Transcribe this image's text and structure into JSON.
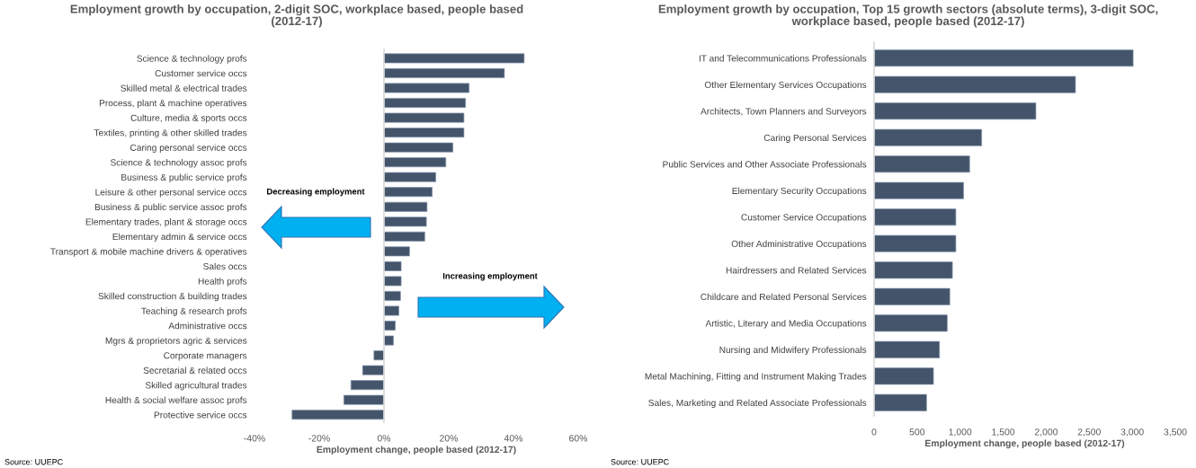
{
  "chart_data": [
    {
      "type": "bar",
      "orientation": "horizontal",
      "title": "Employment growth by occupation, 2-digit SOC, workplace based, people based (2012-17)",
      "xlabel": "Employment change, people based (2012-17)",
      "categories": [
        "Science & technology profs",
        "Customer service occs",
        "Skilled metal & electrical trades",
        "Process, plant & machine operatives",
        "Culture, media & sports occs",
        "Textiles, printing & other skilled trades",
        "Caring personal service occs",
        "Science & technology assoc profs",
        "Business & public service profs",
        "Leisure & other personal service occs",
        "Business & public service assoc profs",
        "Elementary trades, plant & storage occs",
        "Elementary admin & service occs",
        "Transport & mobile machine drivers & operatives",
        "Sales occs",
        "Health profs",
        "Skilled construction & building trades",
        "Teaching & research profs",
        "Administrative occs",
        "Mgrs & proprietors agric & services",
        "Corporate managers",
        "Secretarial & related occs",
        "Skilled agricultural trades",
        "Health & social welfare assoc profs",
        "Protective service occs"
      ],
      "values": [
        43.3,
        37.2,
        26.3,
        25.2,
        24.7,
        24.7,
        21.3,
        19.1,
        16.0,
        14.9,
        13.3,
        13.1,
        12.6,
        7.9,
        5.3,
        5.3,
        5.1,
        4.6,
        3.5,
        2.9,
        -3.1,
        -6.6,
        -10.2,
        -12.4,
        -28.4
      ],
      "color": "#44546a",
      "xlim": [
        -40,
        60
      ],
      "xticks": [
        {
          "value": -40,
          "label": "-40%"
        },
        {
          "value": -20,
          "label": "-20%"
        },
        {
          "value": 0,
          "label": "0%"
        },
        {
          "value": 20,
          "label": "20%"
        },
        {
          "value": 40,
          "label": "40%"
        },
        {
          "value": 60,
          "label": "60%"
        }
      ],
      "annotations": [
        "Decreasing employment",
        "Increasing employment",
        "Source: UUEPC"
      ]
    },
    {
      "type": "bar",
      "orientation": "horizontal",
      "title": "Employment growth by occupation, Top 15 growth sectors (absolute terms), 3-digit SOC, workplace based, people based (2012-17)",
      "xlabel": "Employment change, people based (2012-17)",
      "categories": [
        "IT and Telecommunications Professionals",
        "Other Elementary Services Occupations",
        "Architects, Town Planners and Surveyors",
        "Caring Personal Services",
        "Public Services and Other Associate Professionals",
        "Elementary Security Occupations",
        "Customer Service Occupations",
        "Other Administrative Occupations",
        "Hairdressers and Related Services",
        "Childcare and Related Personal Services",
        "Artistic, Literary and Media Occupations",
        "Nursing and Midwifery Professionals",
        "Metal Machining, Fitting and Instrument Making Trades",
        "Sales, Marketing and Related Associate Professionals"
      ],
      "values": [
        3010,
        2340,
        1880,
        1250,
        1110,
        1040,
        950,
        950,
        910,
        880,
        850,
        760,
        690,
        610
      ],
      "color": "#44546a",
      "xlim": [
        0,
        3500
      ],
      "xticks": [
        0,
        500,
        {
          "value": 1000,
          "label": "1,000"
        },
        {
          "value": 1500,
          "label": "1,500"
        },
        {
          "value": 2000,
          "label": "2,000"
        },
        {
          "value": 2500,
          "label": "2,500"
        },
        {
          "value": 3000,
          "label": "3,000"
        },
        {
          "value": 3500,
          "label": "3,500"
        }
      ],
      "annotations": [
        "Source: UUEPC"
      ]
    }
  ]
}
